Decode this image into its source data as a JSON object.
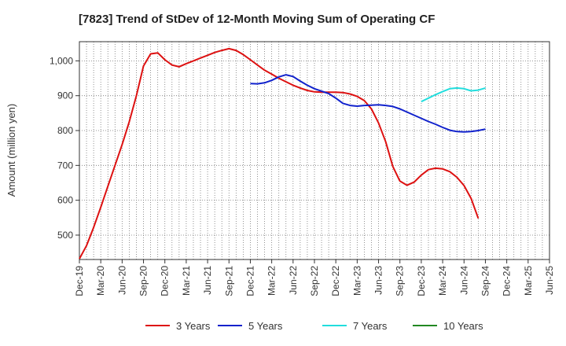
{
  "chart_data": {
    "type": "line",
    "title": "[7823]  Trend of StDev of 12-Month Moving Sum of Operating CF",
    "ylabel": "Amount (million yen)",
    "xlabel": "",
    "x_ticks": [
      "Dec-19",
      "Mar-20",
      "Jun-20",
      "Sep-20",
      "Dec-20",
      "Mar-21",
      "Jun-21",
      "Sep-21",
      "Dec-21",
      "Mar-22",
      "Jun-22",
      "Sep-22",
      "Dec-22",
      "Mar-23",
      "Jun-23",
      "Sep-23",
      "Dec-23",
      "Mar-24",
      "Jun-24",
      "Sep-24",
      "Dec-24",
      "Mar-25"
    ],
    "x_ticks_extra": [
      "Jun-25"
    ],
    "y_ticks": [
      500,
      600,
      700,
      800,
      900,
      1000
    ],
    "y_tick_labels": [
      "500",
      "600",
      "700",
      "800",
      "900",
      "1,000"
    ],
    "ylim": [
      430,
      1055
    ],
    "grid": true,
    "legend_position": "bottom",
    "series": [
      {
        "name": "3 Years",
        "color": "#dd1111",
        "values": [
          [
            0,
            432
          ],
          [
            1,
            470
          ],
          [
            2,
            522
          ],
          [
            3,
            580
          ],
          [
            4,
            640
          ],
          [
            5,
            700
          ],
          [
            6,
            760
          ],
          [
            7,
            825
          ],
          [
            8,
            900
          ],
          [
            9,
            985
          ],
          [
            10,
            1020
          ],
          [
            11,
            1023
          ],
          [
            12,
            1003
          ],
          [
            13,
            988
          ],
          [
            14,
            983
          ],
          [
            15,
            992
          ],
          [
            16,
            1000
          ],
          [
            17,
            1008
          ],
          [
            18,
            1016
          ],
          [
            19,
            1024
          ],
          [
            20,
            1030
          ],
          [
            21,
            1035
          ],
          [
            22,
            1030
          ],
          [
            23,
            1018
          ],
          [
            24,
            1003
          ],
          [
            25,
            988
          ],
          [
            26,
            973
          ],
          [
            27,
            962
          ],
          [
            28,
            950
          ],
          [
            29,
            940
          ],
          [
            30,
            930
          ],
          [
            31,
            922
          ],
          [
            32,
            915
          ],
          [
            33,
            911
          ],
          [
            34,
            910
          ],
          [
            35,
            910
          ],
          [
            36,
            910
          ],
          [
            37,
            909
          ],
          [
            38,
            905
          ],
          [
            39,
            898
          ],
          [
            40,
            886
          ],
          [
            41,
            862
          ],
          [
            42,
            822
          ],
          [
            43,
            768
          ],
          [
            44,
            697
          ],
          [
            45,
            655
          ],
          [
            46,
            643
          ],
          [
            47,
            652
          ],
          [
            48,
            672
          ],
          [
            49,
            688
          ],
          [
            50,
            692
          ],
          [
            51,
            690
          ],
          [
            52,
            682
          ],
          [
            53,
            666
          ],
          [
            54,
            642
          ],
          [
            55,
            605
          ],
          [
            56,
            548
          ]
        ]
      },
      {
        "name": "5 Years",
        "color": "#1122cc",
        "values": [
          [
            24,
            935
          ],
          [
            25,
            934
          ],
          [
            26,
            937
          ],
          [
            27,
            944
          ],
          [
            28,
            954
          ],
          [
            29,
            960
          ],
          [
            30,
            955
          ],
          [
            31,
            942
          ],
          [
            32,
            930
          ],
          [
            33,
            920
          ],
          [
            34,
            913
          ],
          [
            35,
            906
          ],
          [
            36,
            893
          ],
          [
            37,
            878
          ],
          [
            38,
            872
          ],
          [
            39,
            870
          ],
          [
            40,
            872
          ],
          [
            41,
            873
          ],
          [
            42,
            874
          ],
          [
            43,
            872
          ],
          [
            44,
            869
          ],
          [
            45,
            862
          ],
          [
            46,
            853
          ],
          [
            47,
            844
          ],
          [
            48,
            835
          ],
          [
            49,
            826
          ],
          [
            50,
            818
          ],
          [
            51,
            809
          ],
          [
            52,
            801
          ],
          [
            53,
            797
          ],
          [
            54,
            796
          ],
          [
            55,
            797
          ],
          [
            56,
            800
          ],
          [
            57,
            804
          ]
        ]
      },
      {
        "name": "7 Years",
        "color": "#22dddd",
        "values": [
          [
            48,
            883
          ],
          [
            49,
            893
          ],
          [
            50,
            903
          ],
          [
            51,
            912
          ],
          [
            52,
            920
          ],
          [
            53,
            922
          ],
          [
            54,
            920
          ],
          [
            55,
            914
          ],
          [
            56,
            916
          ],
          [
            57,
            922
          ]
        ]
      },
      {
        "name": "10 Years",
        "color": "#228822",
        "values": []
      }
    ]
  }
}
